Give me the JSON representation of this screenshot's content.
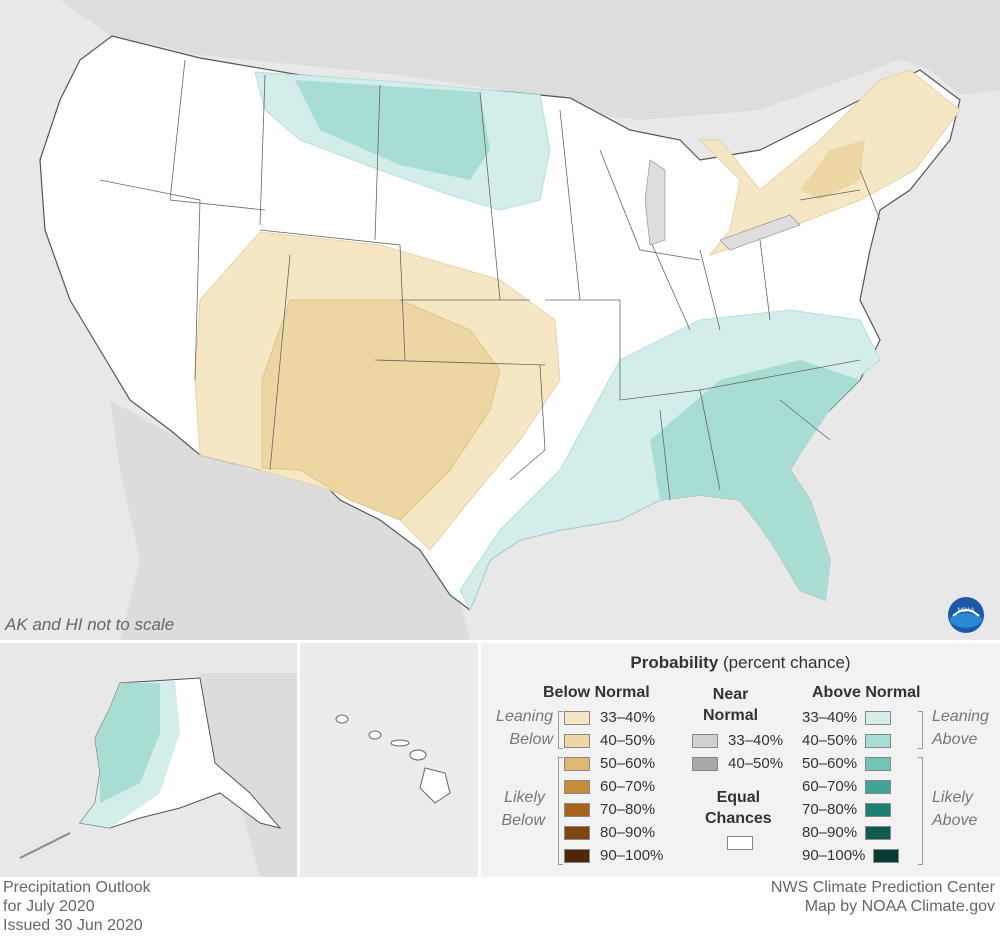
{
  "map": {
    "scale_note": "AK and HI not to scale",
    "logo_text": "NOAA"
  },
  "legend": {
    "title_bold": "Probability",
    "title_rest": " (percent chance)",
    "below": {
      "header": "Below Normal",
      "items": [
        {
          "label": "33–40%",
          "color": "#f5e6c4"
        },
        {
          "label": "40–50%",
          "color": "#ecd6a2"
        },
        {
          "label": "50–60%",
          "color": "#dfb870"
        },
        {
          "label": "60–70%",
          "color": "#c88d3b"
        },
        {
          "label": "70–80%",
          "color": "#a5631c"
        },
        {
          "label": "80–90%",
          "color": "#7d4510"
        },
        {
          "label": "90–100%",
          "color": "#4e2805"
        }
      ],
      "leaning_label_1": "Leaning",
      "leaning_label_2": "Below",
      "likely_label_1": "Likely",
      "likely_label_2": "Below"
    },
    "near": {
      "header_1": "Near",
      "header_2": "Normal",
      "items": [
        {
          "label": "33–40%",
          "color": "#d0d0d0"
        },
        {
          "label": "40–50%",
          "color": "#a8a8a8"
        }
      ],
      "equal_1": "Equal",
      "equal_2": "Chances",
      "equal_color": "#ffffff"
    },
    "above": {
      "header": "Above Normal",
      "items": [
        {
          "label": "33–40%",
          "color": "#d3eeea"
        },
        {
          "label": "40–50%",
          "color": "#a8ddd4"
        },
        {
          "label": "50–60%",
          "color": "#72c4b5"
        },
        {
          "label": "60–70%",
          "color": "#3fa497"
        },
        {
          "label": "70–80%",
          "color": "#1e7f72"
        },
        {
          "label": "80–90%",
          "color": "#0e5b50"
        },
        {
          "label": "90–100%",
          "color": "#053b33"
        }
      ],
      "leaning_label_1": "Leaning",
      "leaning_label_2": "Above",
      "likely_label_1": "Likely",
      "likely_label_2": "Above"
    }
  },
  "footer": {
    "left_1": "Precipitation Outlook",
    "left_2": "for July 2020",
    "left_3": "Issued 30 Jun 2020",
    "right_1": "NWS Climate Prediction Center",
    "right_2": "Map by NOAA Climate.gov"
  }
}
